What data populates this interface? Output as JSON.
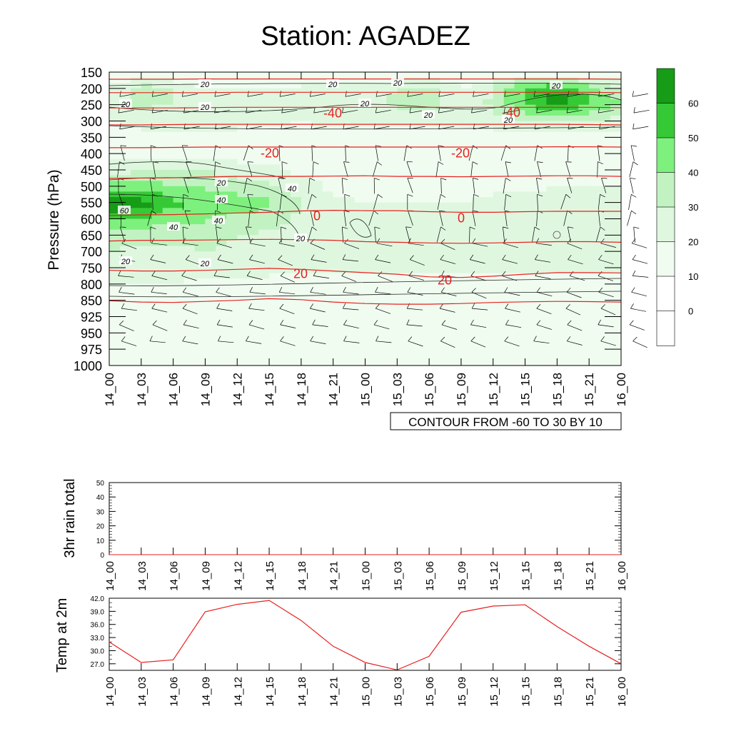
{
  "title": "Station: AGADEZ",
  "colors": {
    "fill_levels": [
      "#ffffff",
      "#f0fcf0",
      "#dff7df",
      "#c2f2c2",
      "#7ef07e",
      "#36c936",
      "#169c16"
    ],
    "temp_contour": "#e82020",
    "wind_barb": "#000000",
    "rh_contour": "#222222",
    "temp_line": "#e82020"
  },
  "chart_data": [
    {
      "type": "heatmap",
      "name": "pressure-time cross section",
      "ylabel": "Pressure (hPa)",
      "xlabel": "",
      "x_ticks": [
        "14_00",
        "14_03",
        "14_06",
        "14_09",
        "14_12",
        "14_15",
        "14_18",
        "14_21",
        "15_00",
        "15_03",
        "15_06",
        "15_09",
        "15_12",
        "15_15",
        "15_18",
        "15_21",
        "16_00"
      ],
      "y_ticks": [
        "150",
        "200",
        "250",
        "300",
        "350",
        "400",
        "450",
        "500",
        "550",
        "600",
        "650",
        "700",
        "750",
        "800",
        "850",
        "925",
        "950",
        "975",
        "1000"
      ],
      "fill_field": {
        "description": "shaded humidity-type field",
        "rows": [
          [
            0,
            0,
            0,
            0,
            0,
            0,
            0,
            0,
            0,
            0,
            0,
            0,
            0,
            0,
            0,
            0,
            0
          ],
          [
            10,
            25,
            20,
            10,
            10,
            10,
            12,
            15,
            15,
            20,
            22,
            10,
            20,
            45,
            50,
            35,
            20
          ],
          [
            20,
            22,
            20,
            18,
            15,
            12,
            12,
            18,
            15,
            22,
            24,
            15,
            22,
            38,
            55,
            40,
            30
          ],
          [
            10,
            12,
            12,
            12,
            12,
            12,
            10,
            12,
            12,
            12,
            15,
            12,
            15,
            20,
            20,
            20,
            15
          ],
          [
            5,
            8,
            8,
            8,
            8,
            5,
            5,
            5,
            5,
            5,
            5,
            5,
            5,
            5,
            5,
            5,
            5
          ],
          [
            5,
            5,
            5,
            5,
            5,
            5,
            5,
            5,
            5,
            5,
            5,
            5,
            5,
            5,
            5,
            5,
            5
          ],
          [
            15,
            18,
            22,
            20,
            15,
            12,
            8,
            5,
            5,
            5,
            5,
            5,
            5,
            5,
            5,
            5,
            5
          ],
          [
            35,
            35,
            30,
            28,
            25,
            22,
            15,
            8,
            5,
            5,
            5,
            5,
            8,
            8,
            10,
            10,
            10
          ],
          [
            60,
            55,
            42,
            38,
            35,
            32,
            20,
            12,
            10,
            10,
            10,
            10,
            12,
            12,
            12,
            14,
            14
          ],
          [
            42,
            38,
            35,
            32,
            28,
            25,
            18,
            12,
            12,
            10,
            10,
            10,
            12,
            12,
            12,
            12,
            12
          ],
          [
            25,
            24,
            22,
            22,
            20,
            18,
            15,
            12,
            15,
            12,
            10,
            10,
            12,
            12,
            12,
            12,
            12
          ],
          [
            20,
            18,
            18,
            20,
            18,
            15,
            12,
            12,
            12,
            12,
            12,
            12,
            12,
            12,
            12,
            12,
            12
          ],
          [
            15,
            14,
            14,
            14,
            14,
            12,
            12,
            12,
            12,
            12,
            12,
            12,
            12,
            12,
            12,
            12,
            12
          ],
          [
            10,
            10,
            10,
            8,
            8,
            8,
            5,
            5,
            5,
            5,
            5,
            5,
            5,
            5,
            5,
            5,
            5
          ],
          [
            0,
            0,
            0,
            0,
            0,
            0,
            0,
            0,
            0,
            0,
            0,
            0,
            0,
            0,
            0,
            0,
            0
          ],
          [
            0,
            0,
            0,
            0,
            0,
            0,
            0,
            0,
            0,
            0,
            0,
            0,
            0,
            0,
            0,
            0,
            0
          ],
          [
            0,
            0,
            0,
            0,
            0,
            0,
            0,
            0,
            0,
            0,
            0,
            0,
            0,
            0,
            0,
            0,
            0
          ],
          [
            0,
            0,
            0,
            0,
            0,
            0,
            0,
            0,
            0,
            0,
            0,
            0,
            0,
            0,
            0,
            0,
            0
          ],
          [
            0,
            0,
            0,
            0,
            0,
            0,
            0,
            0,
            0,
            0,
            0,
            0,
            0,
            0,
            0,
            0,
            0
          ]
        ]
      },
      "colorbar": {
        "levels": [
          0,
          10,
          20,
          30,
          40,
          50,
          60
        ],
        "labels": [
          "0",
          "10",
          "20",
          "30",
          "40",
          "50",
          "60"
        ]
      },
      "temperature_contours": [
        {
          "label": "-40",
          "pressures": [
            172,
            172,
            172,
            171,
            171,
            171,
            171,
            171,
            171,
            171,
            171,
            171,
            171,
            171,
            171,
            171,
            172
          ]
        },
        {
          "label": "-40",
          "pressures": [
            213,
            213,
            213,
            213,
            212,
            212,
            212,
            212,
            212,
            212,
            212,
            212,
            212,
            212,
            212,
            212,
            213
          ]
        },
        {
          "label": "-40",
          "pressures": [
            260,
            260,
            260,
            259,
            258,
            258,
            258,
            258,
            258,
            258,
            258,
            258,
            258,
            258,
            258,
            258,
            259
          ]
        },
        {
          "label": "",
          "pressures": [
            312,
            312,
            311,
            310,
            310,
            310,
            310,
            310,
            310,
            310,
            310,
            310,
            310,
            310,
            310,
            311,
            312
          ]
        },
        {
          "label": "-20",
          "pressures": [
            382,
            382,
            381,
            380,
            380,
            380,
            380,
            380,
            380,
            380,
            380,
            380,
            380,
            380,
            379,
            379,
            380
          ]
        },
        {
          "label": "",
          "pressures": [
            476,
            475,
            474,
            472,
            470,
            470,
            470,
            469,
            468,
            470,
            470,
            471,
            470,
            469,
            468,
            468,
            470
          ]
        },
        {
          "label": "0",
          "pressures": [
            590,
            588,
            587,
            585,
            582,
            580,
            576,
            574,
            575,
            575,
            578,
            580,
            580,
            578,
            577,
            577,
            577
          ]
        },
        {
          "label": "",
          "pressures": [
            668,
            666,
            666,
            665,
            664,
            663,
            664,
            666,
            670,
            672,
            674,
            675,
            674,
            672,
            670,
            670,
            672
          ]
        },
        {
          "label": "20",
          "pressures": [
            758,
            760,
            760,
            758,
            755,
            752,
            755,
            760,
            765,
            770,
            778,
            780,
            776,
            770,
            765,
            765,
            766
          ]
        },
        {
          "label": "",
          "pressures": [
            852,
            858,
            860,
            855,
            850,
            845,
            848,
            858,
            865,
            868,
            868,
            865,
            860,
            857,
            855,
            856,
            858
          ]
        }
      ],
      "contour_labels": [
        "20",
        "20",
        "20",
        "20",
        "20",
        "20",
        "20",
        "20",
        "40",
        "40",
        "40",
        "40",
        "60",
        "20",
        "20",
        "20",
        "20",
        "20",
        "-40",
        "-40",
        "-20",
        "-20",
        "0",
        "0",
        "20",
        "20"
      ],
      "annotation": "CONTOUR FROM -60 TO 30 BY 10"
    },
    {
      "type": "line",
      "name": "3hr rain total",
      "ylabel": "3hr rain total",
      "x": [
        "14_00",
        "14_03",
        "14_06",
        "14_09",
        "14_12",
        "14_15",
        "14_18",
        "14_21",
        "15_00",
        "15_03",
        "15_06",
        "15_09",
        "15_12",
        "15_15",
        "15_18",
        "15_21",
        "16_00"
      ],
      "values": [
        0,
        0,
        0,
        0,
        0,
        0,
        0,
        0,
        0,
        0,
        0,
        0,
        0,
        0,
        0,
        0,
        0
      ],
      "ylim": [
        0,
        50
      ],
      "y_ticks": [
        "50",
        "40",
        "30",
        "20",
        "10",
        "0"
      ]
    },
    {
      "type": "line",
      "name": "Temp at 2m",
      "ylabel": "Temp at 2m",
      "x": [
        "14_00",
        "14_03",
        "14_06",
        "14_09",
        "14_12",
        "14_15",
        "14_18",
        "14_21",
        "15_00",
        "15_03",
        "15_06",
        "15_09",
        "15_12",
        "15_15",
        "15_18",
        "15_21",
        "16_00"
      ],
      "values": [
        32.0,
        27.3,
        27.9,
        38.9,
        40.6,
        41.5,
        36.9,
        31.0,
        27.3,
        25.6,
        28.7,
        38.8,
        40.2,
        40.5,
        35.5,
        31.0,
        27.0
      ],
      "ylim": [
        25.5,
        42.0
      ],
      "y_ticks": [
        "42.0",
        "39.0",
        "36.0",
        "33.0",
        "30.0",
        "27.0"
      ]
    }
  ]
}
